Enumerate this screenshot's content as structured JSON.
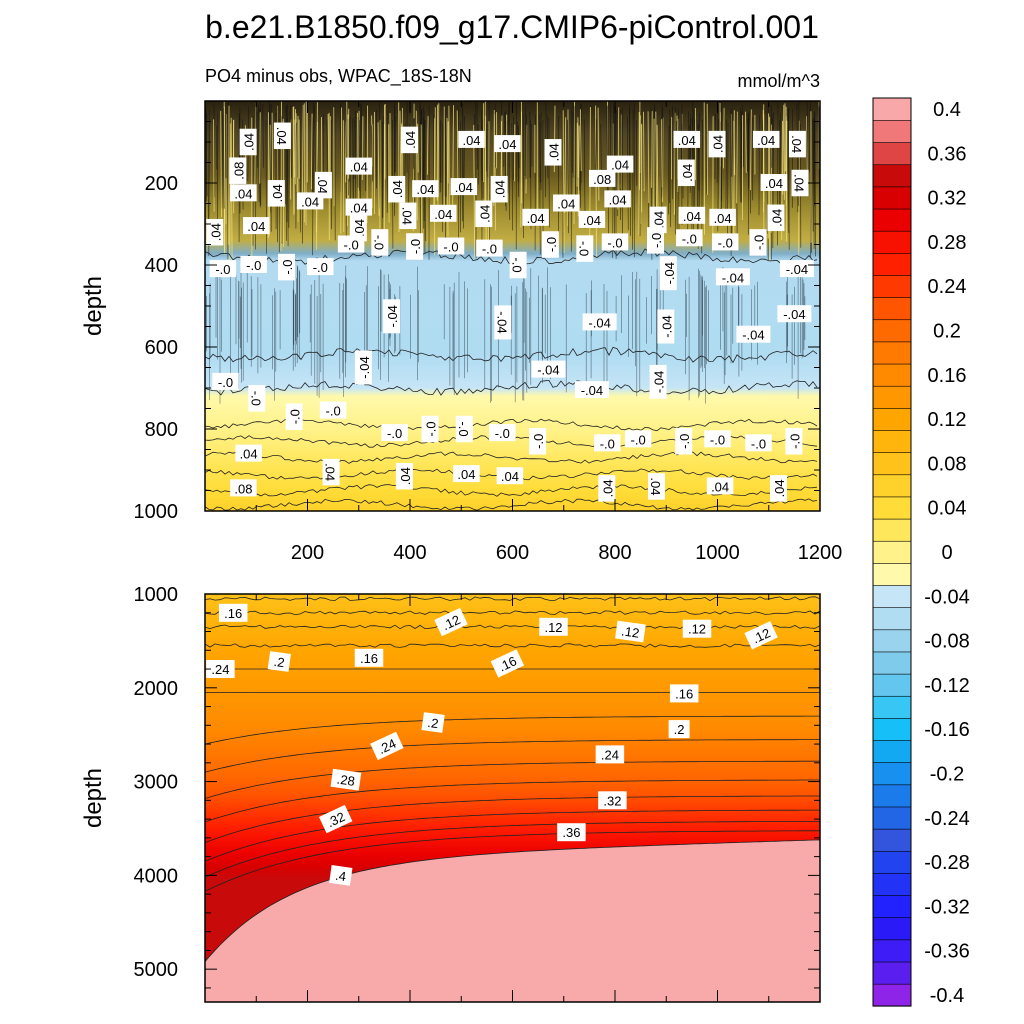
{
  "figure": {
    "title": "b.e21.B1850.f09_g17.CMIP6-piControl.001",
    "left_subtitle": "PO4 minus obs, WPAC_18S-18N",
    "right_subtitle": "mmol/m^3"
  },
  "chart_data": [
    {
      "type": "contour",
      "panel": "upper",
      "title": "PO4 minus obs, WPAC_18S-18N",
      "units": "mmol/m^3",
      "xlabel": "",
      "ylabel": "depth",
      "xlim": [
        0,
        1200
      ],
      "ylim": [
        1000,
        0
      ],
      "y_reversed": true,
      "x_ticks": [
        200,
        400,
        600,
        800,
        1000,
        1200
      ],
      "y_ticks": [
        200,
        400,
        600,
        800,
        1000
      ],
      "contour_interval": 0.02,
      "description_of_field": [
        {
          "depth_range": [
            0,
            380
          ],
          "value": 0.04,
          "note": "noisy positive anomaly, dense contour lines"
        },
        {
          "depth_range": [
            380,
            800
          ],
          "value": -0.04,
          "note": "negative anomaly band"
        },
        {
          "depth_range": [
            800,
            1000
          ],
          "value": 0.06,
          "note": "positive anomaly increasing with depth"
        }
      ],
      "contour_labels": [
        {
          "x": 85,
          "depth": 100,
          "text": ".04"
        },
        {
          "x": 150,
          "depth": 85,
          "text": ".04"
        },
        {
          "x": 300,
          "depth": 160,
          "text": ".04"
        },
        {
          "x": 400,
          "depth": 95,
          "text": ".04"
        },
        {
          "x": 520,
          "depth": 95,
          "text": ".04"
        },
        {
          "x": 590,
          "depth": 105,
          "text": ".04"
        },
        {
          "x": 680,
          "depth": 125,
          "text": ".04"
        },
        {
          "x": 810,
          "depth": 155,
          "text": ".04"
        },
        {
          "x": 940,
          "depth": 95,
          "text": ".04"
        },
        {
          "x": 1000,
          "depth": 105,
          "text": ".04"
        },
        {
          "x": 1095,
          "depth": 95,
          "text": ".04"
        },
        {
          "x": 1155,
          "depth": 105,
          "text": ".04"
        },
        {
          "x": 65,
          "depth": 170,
          "text": ".08"
        },
        {
          "x": 775,
          "depth": 190,
          "text": ".08"
        },
        {
          "x": 75,
          "depth": 225,
          "text": ".04"
        },
        {
          "x": 140,
          "depth": 225,
          "text": ".04"
        },
        {
          "x": 230,
          "depth": 205,
          "text": ".04"
        },
        {
          "x": 300,
          "depth": 260,
          "text": ".04"
        },
        {
          "x": 375,
          "depth": 215,
          "text": ".04"
        },
        {
          "x": 430,
          "depth": 215,
          "text": ".04"
        },
        {
          "x": 505,
          "depth": 210,
          "text": ".04"
        },
        {
          "x": 575,
          "depth": 215,
          "text": ".04"
        },
        {
          "x": 705,
          "depth": 250,
          "text": ".04"
        },
        {
          "x": 805,
          "depth": 240,
          "text": ".04"
        },
        {
          "x": 940,
          "depth": 175,
          "text": ".04"
        },
        {
          "x": 1110,
          "depth": 200,
          "text": ".04"
        },
        {
          "x": 1160,
          "depth": 200,
          "text": ".04"
        },
        {
          "x": 20,
          "depth": 320,
          "text": ".04"
        },
        {
          "x": 100,
          "depth": 305,
          "text": ".04"
        },
        {
          "x": 205,
          "depth": 245,
          "text": ".04"
        },
        {
          "x": 300,
          "depth": 310,
          "text": ".04"
        },
        {
          "x": 395,
          "depth": 280,
          "text": ".04"
        },
        {
          "x": 465,
          "depth": 275,
          "text": ".04"
        },
        {
          "x": 545,
          "depth": 275,
          "text": ".04"
        },
        {
          "x": 645,
          "depth": 285,
          "text": ".04"
        },
        {
          "x": 755,
          "depth": 290,
          "text": ".04"
        },
        {
          "x": 885,
          "depth": 290,
          "text": ".04"
        },
        {
          "x": 950,
          "depth": 280,
          "text": ".04"
        },
        {
          "x": 1010,
          "depth": 285,
          "text": ".04"
        },
        {
          "x": 1115,
          "depth": 285,
          "text": ".04"
        },
        {
          "x": 285,
          "depth": 350,
          "text": "-.0"
        },
        {
          "x": 340,
          "depth": 345,
          "text": "-.0"
        },
        {
          "x": 410,
          "depth": 355,
          "text": "-.0"
        },
        {
          "x": 480,
          "depth": 355,
          "text": "-.0"
        },
        {
          "x": 555,
          "depth": 360,
          "text": "-.0"
        },
        {
          "x": 675,
          "depth": 350,
          "text": "-.0"
        },
        {
          "x": 740,
          "depth": 360,
          "text": "-.0"
        },
        {
          "x": 800,
          "depth": 345,
          "text": "-.0"
        },
        {
          "x": 880,
          "depth": 340,
          "text": "-.0"
        },
        {
          "x": 945,
          "depth": 335,
          "text": "-.0"
        },
        {
          "x": 1015,
          "depth": 345,
          "text": "-.0"
        },
        {
          "x": 1080,
          "depth": 345,
          "text": "-.0"
        },
        {
          "x": 35,
          "depth": 410,
          "text": "-.0"
        },
        {
          "x": 95,
          "depth": 400,
          "text": "-.0"
        },
        {
          "x": 160,
          "depth": 405,
          "text": "-.0"
        },
        {
          "x": 225,
          "depth": 405,
          "text": "-.0"
        },
        {
          "x": 610,
          "depth": 400,
          "text": "-.0"
        },
        {
          "x": 905,
          "depth": 420,
          "text": "-.04"
        },
        {
          "x": 1030,
          "depth": 430,
          "text": "-.04"
        },
        {
          "x": 1155,
          "depth": 410,
          "text": "-.04"
        },
        {
          "x": 365,
          "depth": 525,
          "text": "-.04"
        },
        {
          "x": 580,
          "depth": 540,
          "text": "-.04"
        },
        {
          "x": 770,
          "depth": 540,
          "text": "-.04"
        },
        {
          "x": 900,
          "depth": 550,
          "text": "-.04"
        },
        {
          "x": 1070,
          "depth": 570,
          "text": "-.04"
        },
        {
          "x": 1150,
          "depth": 520,
          "text": "-.04"
        },
        {
          "x": 310,
          "depth": 650,
          "text": "-.04"
        },
        {
          "x": 670,
          "depth": 655,
          "text": "-.04"
        },
        {
          "x": 755,
          "depth": 705,
          "text": "-.04"
        },
        {
          "x": 885,
          "depth": 685,
          "text": "-.04"
        },
        {
          "x": 40,
          "depth": 685,
          "text": "-.0"
        },
        {
          "x": 100,
          "depth": 725,
          "text": "-.0"
        },
        {
          "x": 175,
          "depth": 770,
          "text": "-.0"
        },
        {
          "x": 250,
          "depth": 755,
          "text": "-.0"
        },
        {
          "x": 370,
          "depth": 810,
          "text": "-.0"
        },
        {
          "x": 440,
          "depth": 800,
          "text": "-.0"
        },
        {
          "x": 505,
          "depth": 800,
          "text": "-.0"
        },
        {
          "x": 580,
          "depth": 810,
          "text": "-.0"
        },
        {
          "x": 650,
          "depth": 830,
          "text": "-.0"
        },
        {
          "x": 785,
          "depth": 835,
          "text": "-.0"
        },
        {
          "x": 845,
          "depth": 825,
          "text": "-.0"
        },
        {
          "x": 935,
          "depth": 830,
          "text": "-.0"
        },
        {
          "x": 1000,
          "depth": 825,
          "text": "-.0"
        },
        {
          "x": 1080,
          "depth": 835,
          "text": "-.0"
        },
        {
          "x": 1150,
          "depth": 830,
          "text": "-.0"
        },
        {
          "x": 85,
          "depth": 860,
          "text": ".04"
        },
        {
          "x": 245,
          "depth": 905,
          "text": ".04"
        },
        {
          "x": 390,
          "depth": 915,
          "text": ".04"
        },
        {
          "x": 510,
          "depth": 910,
          "text": ".04"
        },
        {
          "x": 595,
          "depth": 915,
          "text": ".04"
        },
        {
          "x": 785,
          "depth": 945,
          "text": ".04"
        },
        {
          "x": 880,
          "depth": 940,
          "text": ".04"
        },
        {
          "x": 1005,
          "depth": 940,
          "text": ".04"
        },
        {
          "x": 1120,
          "depth": 945,
          "text": ".04"
        },
        {
          "x": 75,
          "depth": 945,
          "text": ".08"
        }
      ]
    },
    {
      "type": "contour",
      "panel": "lower",
      "xlabel": "",
      "ylabel": "depth",
      "xlim": [
        0,
        1200
      ],
      "ylim": [
        5350,
        1000
      ],
      "y_reversed": true,
      "y_ticks": [
        1000,
        2000,
        3000,
        4000,
        5000
      ],
      "contour_interval": 0.02,
      "description_of_field": [
        {
          "depth_range": [
            1000,
            2000
          ],
          "value": 0.14
        },
        {
          "depth_range": [
            2000,
            3000
          ],
          "value": 0.24
        },
        {
          "depth_range": [
            3000,
            3800
          ],
          "value": 0.32
        },
        {
          "depth_range": [
            3800,
            5350
          ],
          "value": 0.42,
          "note": "saturated above colorbar maximum"
        }
      ],
      "contour_labels": [
        {
          "x": 55,
          "depth": 1200,
          "text": ".16"
        },
        {
          "x": 480,
          "depth": 1300,
          "text": ".12"
        },
        {
          "x": 680,
          "depth": 1350,
          "text": ".12"
        },
        {
          "x": 830,
          "depth": 1400,
          "text": ".12"
        },
        {
          "x": 960,
          "depth": 1370,
          "text": ".12"
        },
        {
          "x": 1085,
          "depth": 1440,
          "text": ".12"
        },
        {
          "x": 30,
          "depth": 1800,
          "text": ".24"
        },
        {
          "x": 145,
          "depth": 1720,
          "text": ".2"
        },
        {
          "x": 320,
          "depth": 1680,
          "text": ".16"
        },
        {
          "x": 590,
          "depth": 1740,
          "text": ".16"
        },
        {
          "x": 935,
          "depth": 2060,
          "text": ".16"
        },
        {
          "x": 445,
          "depth": 2370,
          "text": ".2"
        },
        {
          "x": 925,
          "depth": 2440,
          "text": ".2"
        },
        {
          "x": 355,
          "depth": 2620,
          "text": ".24"
        },
        {
          "x": 790,
          "depth": 2710,
          "text": ".24"
        },
        {
          "x": 275,
          "depth": 2980,
          "text": ".28"
        },
        {
          "x": 795,
          "depth": 3200,
          "text": ".32"
        },
        {
          "x": 255,
          "depth": 3400,
          "text": ".32"
        },
        {
          "x": 715,
          "depth": 3540,
          "text": ".36"
        },
        {
          "x": 265,
          "depth": 4000,
          "text": ".4"
        }
      ]
    }
  ],
  "upper_panel": {
    "ylabel": "depth",
    "x_tick_labels": [
      "200",
      "400",
      "600",
      "800",
      "1000",
      "1200"
    ],
    "y_tick_labels": [
      "200",
      "400",
      "600",
      "800",
      "1000"
    ]
  },
  "lower_panel": {
    "ylabel": "depth",
    "y_tick_labels": [
      "1000",
      "2000",
      "3000",
      "4000",
      "5000"
    ]
  },
  "colorbar": {
    "levels": [
      -0.4,
      -0.38,
      -0.36,
      -0.34,
      -0.32,
      -0.3,
      -0.28,
      -0.26,
      -0.24,
      -0.22,
      -0.2,
      -0.18,
      -0.16,
      -0.14,
      -0.12,
      -0.1,
      -0.08,
      -0.06,
      -0.04,
      -0.02,
      0,
      0.02,
      0.04,
      0.06,
      0.08,
      0.1,
      0.12,
      0.14,
      0.16,
      0.18,
      0.2,
      0.22,
      0.24,
      0.26,
      0.28,
      0.3,
      0.32,
      0.34,
      0.36,
      0.38,
      0.4
    ],
    "colors": [
      "#8E24E8",
      "#5A1FEF",
      "#3E1CF5",
      "#2B1AF8",
      "#2222FF",
      "#2233F5",
      "#2244EE",
      "#3355DD",
      "#2266E6",
      "#1B7BEA",
      "#1890F0",
      "#12A8F2",
      "#16BFF8",
      "#38C6F4",
      "#62C6EE",
      "#7FCBEC",
      "#9AD3EE",
      "#B0DDF2",
      "#C6E5F6",
      "#FFF9AB",
      "#FFF28A",
      "#FFE75C",
      "#FFDC38",
      "#FFD12A",
      "#FFC21A",
      "#FFB50C",
      "#FFA500",
      "#FF9800",
      "#FF8A00",
      "#FF7A00",
      "#FF6A00",
      "#FF5500",
      "#FF3A00",
      "#FF2000",
      "#F81000",
      "#EA0000",
      "#D80000",
      "#C80A0A",
      "#E04545",
      "#F07878",
      "#F8A8A8"
    ],
    "tick_labels": [
      "0.4",
      "0.36",
      "0.32",
      "0.28",
      "0.24",
      "0.2",
      "0.16",
      "0.12",
      "0.08",
      "0.04",
      "0",
      "-0.04",
      "-0.08",
      "-0.12",
      "-0.16",
      "-0.2",
      "-0.24",
      "-0.28",
      "-0.32",
      "-0.36",
      "-0.4"
    ]
  }
}
